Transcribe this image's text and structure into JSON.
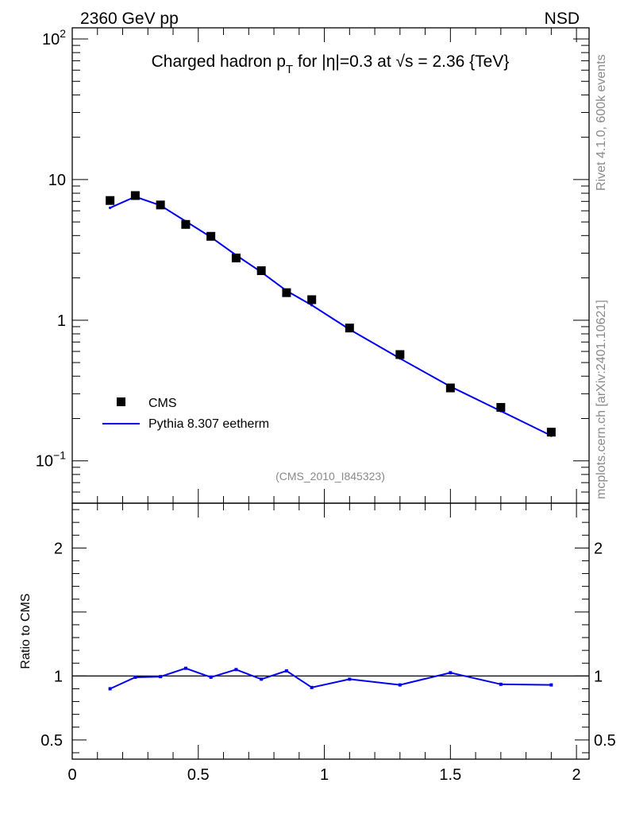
{
  "header": {
    "left": "2360 GeV pp",
    "right": "NSD"
  },
  "side_labels": {
    "top": "Rivet 4.1.0,  600k events",
    "bottom": "mcplots.cern.ch [arXiv:2401.10621]"
  },
  "analysis_tag": "(CMS_2010_I845323)",
  "title": {
    "p1": "Charged hadron p",
    "sub": "T",
    "p2": " for |",
    "eta": "η",
    "p3": "|=0.3 at ",
    "sqrt": "√s",
    "p4": " = 2.36 {TeV}"
  },
  "ratio_ylabel": "Ratio to CMS",
  "legend": {
    "data": "CMS",
    "mc": "Pythia 8.307 eetherm"
  },
  "colors": {
    "data": "#000000",
    "mc": "#0000ee",
    "reference_line": "#000000"
  },
  "chart_data": [
    {
      "type": "scatter",
      "panel": "main",
      "yscale": "log",
      "xlim": [
        0,
        2.05
      ],
      "ylim": [
        0.05,
        120
      ],
      "yticks": [
        {
          "value": 100,
          "base": "10",
          "exp": "2"
        },
        {
          "value": 10,
          "label": "10"
        },
        {
          "value": 1,
          "label": "1"
        },
        {
          "value": 0.1,
          "base": "10",
          "exp": "−1"
        }
      ],
      "series": [
        {
          "name": "CMS",
          "x": [
            0.15,
            0.25,
            0.35,
            0.45,
            0.55,
            0.65,
            0.75,
            0.85,
            0.95,
            1.1,
            1.3,
            1.5,
            1.7,
            1.9
          ],
          "y": [
            7.1,
            7.7,
            6.6,
            4.8,
            3.95,
            2.77,
            2.25,
            1.57,
            1.4,
            0.88,
            0.57,
            0.33,
            0.24,
            0.16
          ]
        },
        {
          "name": "Pythia 8.307 eetherm",
          "x": [
            0.15,
            0.25,
            0.35,
            0.45,
            0.55,
            0.65,
            0.75,
            0.85,
            0.95,
            1.1,
            1.3,
            1.5,
            1.7,
            1.9
          ],
          "y": [
            6.3,
            7.55,
            6.55,
            5.05,
            3.9,
            2.9,
            2.2,
            1.62,
            1.28,
            0.86,
            0.535,
            0.338,
            0.226,
            0.151
          ]
        }
      ]
    },
    {
      "type": "line",
      "panel": "ratio",
      "xlim": [
        0,
        2.05
      ],
      "ylim": [
        0.35,
        2.35
      ],
      "yticks": [
        0.5,
        1,
        2
      ],
      "ytick_labels": [
        "0.5",
        "1",
        "2"
      ],
      "xticks": [
        0,
        0.5,
        1,
        1.5,
        2
      ],
      "xtick_labels": [
        "0",
        "0.5",
        "1",
        "1.5",
        "2"
      ],
      "reference": 1,
      "series": [
        {
          "name": "Pythia 8.307 eetherm / CMS",
          "x": [
            0.15,
            0.25,
            0.35,
            0.45,
            0.55,
            0.65,
            0.75,
            0.85,
            0.95,
            1.1,
            1.3,
            1.5,
            1.7,
            1.9
          ],
          "y": [
            0.9,
            0.99,
            0.995,
            1.06,
            0.99,
            1.05,
            0.975,
            1.04,
            0.91,
            0.975,
            0.93,
            1.025,
            0.935,
            0.93
          ]
        }
      ]
    }
  ]
}
